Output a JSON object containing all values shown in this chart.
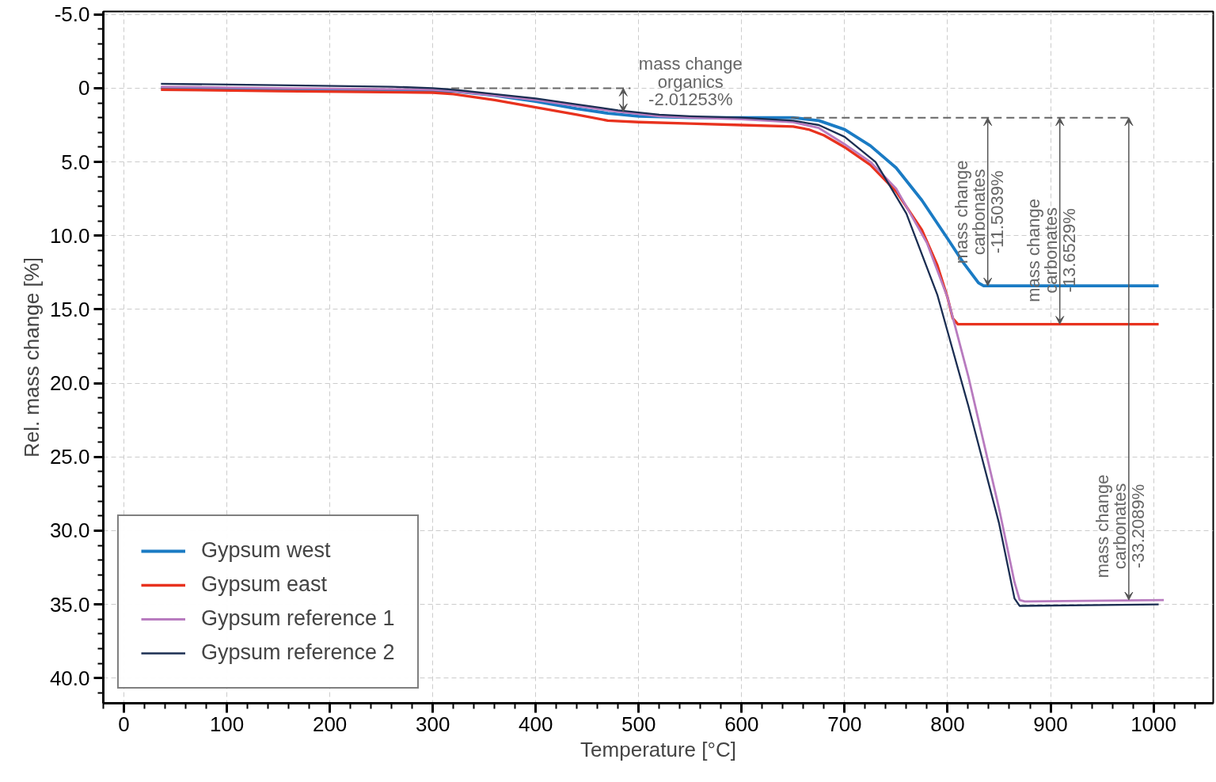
{
  "chart_data": {
    "type": "line",
    "xlabel": "Temperature [°C]",
    "ylabel": "Rel. mass change [%]",
    "xlim": [
      -20,
      1058
    ],
    "ylim": [
      41.7,
      -5.2
    ],
    "xticks": [
      0,
      100,
      200,
      300,
      400,
      500,
      600,
      700,
      800,
      900,
      1000
    ],
    "yticks": [
      {
        "value": -5,
        "label": "-5.0"
      },
      0,
      {
        "value": 5,
        "label": "5.0"
      },
      {
        "value": 10,
        "label": "10.0"
      },
      {
        "value": 15,
        "label": "15.0"
      },
      {
        "value": 20,
        "label": "20.0"
      },
      {
        "value": 25,
        "label": "25.0"
      },
      {
        "value": 30,
        "label": "30.0"
      },
      {
        "value": 35,
        "label": "35.0"
      },
      {
        "value": 40,
        "label": "40.0"
      }
    ],
    "grid": true,
    "legend": "bottom left",
    "series": [
      {
        "name": "Gypsum west",
        "color": "#1a7bc4",
        "x": [
          36,
          150,
          300,
          320,
          360,
          400,
          440,
          470,
          500,
          550,
          600,
          650,
          675,
          700,
          725,
          750,
          775,
          800,
          815,
          830,
          835,
          840,
          1005
        ],
        "values": [
          0.0,
          0.1,
          0.2,
          0.2,
          0.5,
          0.9,
          1.4,
          1.7,
          1.9,
          2.0,
          2.0,
          2.0,
          2.2,
          2.8,
          3.9,
          5.4,
          7.6,
          10.2,
          11.8,
          13.2,
          13.4,
          13.4,
          13.4
        ]
      },
      {
        "name": "Gypsum east",
        "color": "#e8321e",
        "x": [
          36,
          150,
          300,
          320,
          360,
          400,
          440,
          470,
          500,
          550,
          600,
          650,
          665,
          680,
          700,
          725,
          750,
          775,
          790,
          800,
          805,
          810,
          815,
          1005
        ],
        "values": [
          0.1,
          0.2,
          0.3,
          0.4,
          0.8,
          1.3,
          1.8,
          2.2,
          2.3,
          2.4,
          2.5,
          2.6,
          2.8,
          3.2,
          4.0,
          5.2,
          7.0,
          9.6,
          12.0,
          14.2,
          15.6,
          16.0,
          16.0,
          16.0
        ]
      },
      {
        "name": "Gypsum reference 1",
        "color": "#b87bbf",
        "x": [
          36,
          150,
          300,
          320,
          360,
          400,
          440,
          480,
          520,
          550,
          600,
          650,
          675,
          700,
          725,
          750,
          780,
          800,
          820,
          850,
          865,
          870,
          875,
          1010
        ],
        "values": [
          -0.1,
          0.0,
          0.1,
          0.2,
          0.5,
          0.8,
          1.2,
          1.6,
          1.9,
          2.0,
          2.1,
          2.3,
          2.7,
          3.8,
          5.0,
          6.8,
          10.5,
          14.2,
          19.5,
          28.5,
          33.5,
          34.7,
          34.8,
          34.7
        ]
      },
      {
        "name": "Gypsum reference 2",
        "color": "#1b2e52",
        "x": [
          36,
          150,
          260,
          300,
          320,
          360,
          400,
          440,
          480,
          520,
          550,
          600,
          650,
          675,
          700,
          730,
          760,
          790,
          820,
          850,
          865,
          870,
          1005
        ],
        "values": [
          -0.3,
          -0.2,
          -0.1,
          0.0,
          0.1,
          0.4,
          0.7,
          1.1,
          1.5,
          1.8,
          1.9,
          2.0,
          2.2,
          2.5,
          3.3,
          5.0,
          8.5,
          14.0,
          21.5,
          29.5,
          34.6,
          35.1,
          35.0
        ]
      },
      {
        "type": "line",
        "color": "#666666",
        "line_style": "dashed",
        "x": [
          318,
          492
        ],
        "values": [
          0.0,
          0.0
        ]
      },
      {
        "type": "line",
        "color": "#666666",
        "line_style": "dashed",
        "x": [
          648,
          980
        ],
        "values": [
          2.0,
          2.0
        ]
      }
    ],
    "annotations": [
      {
        "text": "mass change\norganics\n-2.01253%",
        "x": 485,
        "y": 1.6
      },
      {
        "text": "mass change\ncarbonates\n-11.5039%",
        "x": 839,
        "y": 13.4
      },
      {
        "text": "mass change\ncarbonates\n-13.6529%",
        "x": 909,
        "y": 16.0
      },
      {
        "text": "mass change\ncarbonates\n-33.2089%",
        "x": 976,
        "y": 34.7
      }
    ]
  }
}
